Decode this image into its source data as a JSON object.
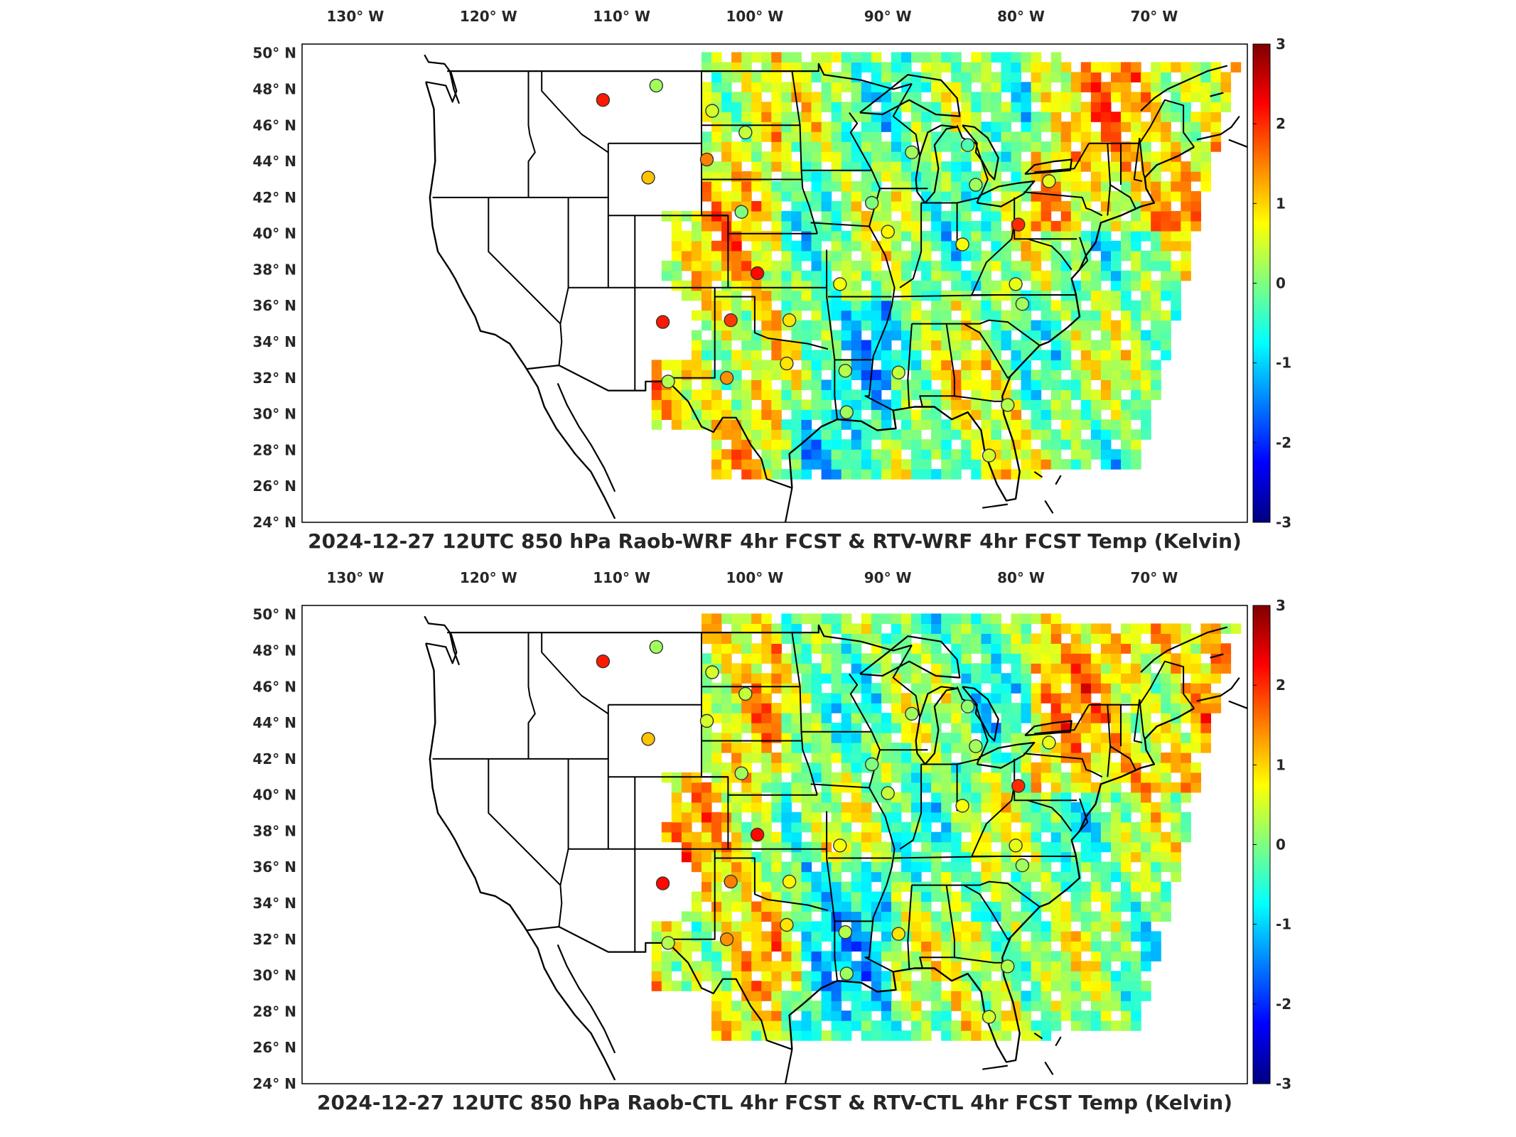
{
  "lon_labels": [
    "130° W",
    "120° W",
    "110° W",
    "100° W",
    "90° W",
    "80° W",
    "70° W"
  ],
  "lat_labels": [
    "50° N",
    "48° N",
    "46° N",
    "44° N",
    "42° N",
    "40° N",
    "38° N",
    "36° N",
    "34° N",
    "32° N",
    "30° N",
    "28° N",
    "26° N",
    "24° N"
  ],
  "colorbar": {
    "min": -3,
    "max": 3,
    "ticks": [
      "3",
      "2",
      "1",
      "0",
      "-1",
      "-2",
      "-3"
    ],
    "colormap": "jet"
  },
  "colors": {
    "jet_stops": [
      "#00007f",
      "#0000ff",
      "#007fff",
      "#00ffff",
      "#7fff7f",
      "#ffff00",
      "#ff7f00",
      "#ff0000",
      "#7f0000"
    ]
  },
  "panels": [
    {
      "id": "top",
      "title": "2024-12-27 12UTC 850 hPa Raob-WRF 4hr FCST & RTV-WRF 4hr FCST Temp (Kelvin)",
      "stations": [
        {
          "lon": -111.4,
          "lat": 47.4,
          "value": 2.1
        },
        {
          "lon": -107.4,
          "lat": 48.2,
          "value": 0.2
        },
        {
          "lon": -103.2,
          "lat": 46.8,
          "value": 0.5
        },
        {
          "lon": -100.7,
          "lat": 45.6,
          "value": 0.4
        },
        {
          "lon": -103.6,
          "lat": 44.1,
          "value": 1.5
        },
        {
          "lon": -108.0,
          "lat": 43.1,
          "value": 1.1
        },
        {
          "lon": -101.0,
          "lat": 41.2,
          "value": 0.0
        },
        {
          "lon": -99.8,
          "lat": 37.8,
          "value": 2.2
        },
        {
          "lon": -106.9,
          "lat": 35.1,
          "value": 2.1
        },
        {
          "lon": -101.8,
          "lat": 35.2,
          "value": 1.9
        },
        {
          "lon": -97.4,
          "lat": 35.2,
          "value": 0.9
        },
        {
          "lon": -97.6,
          "lat": 32.8,
          "value": 0.9
        },
        {
          "lon": -102.1,
          "lat": 32.0,
          "value": 1.4
        },
        {
          "lon": -106.5,
          "lat": 31.8,
          "value": 0.3
        },
        {
          "lon": -93.6,
          "lat": 37.2,
          "value": 0.7
        },
        {
          "lon": -93.2,
          "lat": 32.4,
          "value": 0.3
        },
        {
          "lon": -89.2,
          "lat": 32.3,
          "value": 0.4
        },
        {
          "lon": -93.1,
          "lat": 30.1,
          "value": 0.2
        },
        {
          "lon": -90.0,
          "lat": 40.1,
          "value": 0.8
        },
        {
          "lon": -91.2,
          "lat": 41.7,
          "value": 0.0
        },
        {
          "lon": -88.2,
          "lat": 44.5,
          "value": 0.2
        },
        {
          "lon": -84.0,
          "lat": 44.9,
          "value": -0.3
        },
        {
          "lon": -83.4,
          "lat": 42.7,
          "value": 0.2
        },
        {
          "lon": -84.4,
          "lat": 39.4,
          "value": 0.7
        },
        {
          "lon": -80.2,
          "lat": 40.5,
          "value": 2.0
        },
        {
          "lon": -77.9,
          "lat": 42.9,
          "value": 0.6
        },
        {
          "lon": -80.4,
          "lat": 37.2,
          "value": 0.6
        },
        {
          "lon": -79.9,
          "lat": 36.1,
          "value": 0.2
        },
        {
          "lon": -81.0,
          "lat": 30.5,
          "value": 0.3
        },
        {
          "lon": -82.4,
          "lat": 27.7,
          "value": 0.5
        }
      ]
    },
    {
      "id": "bottom",
      "title": "2024-12-27 12UTC 850 hPa Raob-CTL 4hr FCST & RTV-CTL 4hr FCST Temp (Kelvin)",
      "stations": [
        {
          "lon": -111.4,
          "lat": 47.4,
          "value": 2.1
        },
        {
          "lon": -107.4,
          "lat": 48.2,
          "value": 0.2
        },
        {
          "lon": -103.2,
          "lat": 46.8,
          "value": 0.5
        },
        {
          "lon": -100.7,
          "lat": 45.6,
          "value": 0.4
        },
        {
          "lon": -103.6,
          "lat": 44.1,
          "value": 0.5
        },
        {
          "lon": -108.0,
          "lat": 43.1,
          "value": 1.1
        },
        {
          "lon": -101.0,
          "lat": 41.2,
          "value": 0.2
        },
        {
          "lon": -99.8,
          "lat": 37.8,
          "value": 2.2
        },
        {
          "lon": -106.9,
          "lat": 35.1,
          "value": 2.2
        },
        {
          "lon": -101.8,
          "lat": 35.2,
          "value": 1.5
        },
        {
          "lon": -97.4,
          "lat": 35.2,
          "value": 0.8
        },
        {
          "lon": -97.6,
          "lat": 32.8,
          "value": 0.9
        },
        {
          "lon": -102.1,
          "lat": 32.0,
          "value": 1.4
        },
        {
          "lon": -106.5,
          "lat": 31.8,
          "value": 0.3
        },
        {
          "lon": -93.6,
          "lat": 37.2,
          "value": 0.7
        },
        {
          "lon": -93.2,
          "lat": 32.4,
          "value": 0.3
        },
        {
          "lon": -89.2,
          "lat": 32.3,
          "value": 0.9
        },
        {
          "lon": -93.1,
          "lat": 30.1,
          "value": 0.2
        },
        {
          "lon": -90.0,
          "lat": 40.1,
          "value": 0.4
        },
        {
          "lon": -91.2,
          "lat": 41.7,
          "value": 0.0
        },
        {
          "lon": -88.2,
          "lat": 44.5,
          "value": 0.2
        },
        {
          "lon": -84.0,
          "lat": 44.9,
          "value": 0.1
        },
        {
          "lon": -83.4,
          "lat": 42.7,
          "value": 0.2
        },
        {
          "lon": -84.4,
          "lat": 39.4,
          "value": 0.7
        },
        {
          "lon": -80.2,
          "lat": 40.5,
          "value": 2.0
        },
        {
          "lon": -77.9,
          "lat": 42.9,
          "value": 0.6
        },
        {
          "lon": -80.4,
          "lat": 37.2,
          "value": 0.6
        },
        {
          "lon": -79.9,
          "lat": 36.1,
          "value": 0.2
        },
        {
          "lon": -81.0,
          "lat": 30.5,
          "value": 0.3
        },
        {
          "lon": -82.4,
          "lat": 27.7,
          "value": 0.5
        }
      ]
    }
  ]
}
